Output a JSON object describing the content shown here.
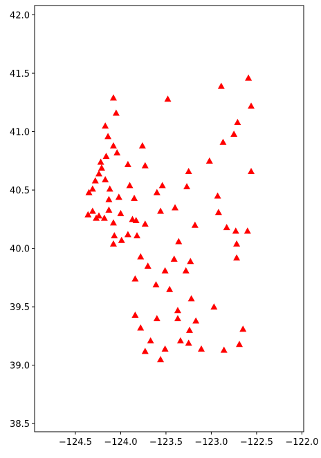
{
  "chart_data": {
    "type": "scatter",
    "marker": "triangle",
    "color": "#ff0000",
    "x": [
      -122.59,
      -122.89,
      -124.08,
      -123.48,
      -122.56,
      -124.05,
      -122.71,
      -124.17,
      -122.75,
      -124.14,
      -122.87,
      -123.76,
      -124.08,
      -124.04,
      -124.16,
      -124.22,
      -123.02,
      -123.92,
      -123.73,
      -124.21,
      -124.24,
      -123.25,
      -122.56,
      -124.17,
      -124.28,
      -123.9,
      -123.54,
      -124.12,
      -123.27,
      -124.31,
      -124.35,
      -123.6,
      -122.93,
      -124.02,
      -123.85,
      -124.13,
      -123.4,
      -124.13,
      -124.31,
      -123.56,
      -122.92,
      -124.0,
      -124.36,
      -124.24,
      -124.27,
      -124.18,
      -123.87,
      -123.83,
      -124.08,
      -123.73,
      -123.18,
      -122.83,
      -122.73,
      -122.6,
      -124.07,
      -123.92,
      -123.82,
      -123.36,
      -123.99,
      -124.08,
      -122.72,
      -123.78,
      -122.72,
      -123.41,
      -123.23,
      -123.7,
      -123.51,
      -123.28,
      -123.84,
      -123.61,
      -123.46,
      -123.22,
      -123.37,
      -122.97,
      -123.84,
      -123.6,
      -123.37,
      -123.17,
      -123.78,
      -123.24,
      -122.65,
      -123.67,
      -123.34,
      -123.25,
      -122.69,
      -123.51,
      -123.11,
      -123.73,
      -122.86,
      -123.56
    ],
    "values": [
      41.46,
      41.39,
      41.29,
      41.28,
      41.22,
      41.16,
      41.08,
      41.05,
      40.98,
      40.96,
      40.91,
      40.88,
      40.88,
      40.82,
      40.79,
      40.74,
      40.75,
      40.72,
      40.71,
      40.69,
      40.64,
      40.66,
      40.66,
      40.59,
      40.58,
      40.54,
      40.54,
      40.51,
      40.53,
      40.51,
      40.48,
      40.48,
      40.45,
      40.44,
      40.43,
      40.42,
      40.35,
      40.33,
      40.32,
      40.32,
      40.31,
      40.3,
      40.29,
      40.28,
      40.26,
      40.26,
      40.25,
      40.24,
      40.22,
      40.21,
      40.2,
      40.18,
      40.15,
      40.15,
      40.11,
      40.12,
      40.11,
      40.06,
      40.07,
      40.04,
      40.04,
      39.93,
      39.92,
      39.91,
      39.89,
      39.85,
      39.81,
      39.81,
      39.74,
      39.69,
      39.65,
      39.57,
      39.47,
      39.5,
      39.43,
      39.4,
      39.4,
      39.38,
      39.32,
      39.3,
      39.31,
      39.21,
      39.21,
      39.19,
      39.18,
      39.14,
      39.14,
      39.12,
      39.13,
      39.05
    ],
    "xlim": [
      -124.95,
      -121.98
    ],
    "ylim": [
      38.43,
      42.08
    ],
    "xticks": [
      {
        "value": -124.5,
        "label": "−124.5"
      },
      {
        "value": -124,
        "label": "−124.0"
      },
      {
        "value": -123.5,
        "label": "−123.5"
      },
      {
        "value": -123,
        "label": "−123.0"
      },
      {
        "value": -122.5,
        "label": "−122.5"
      },
      {
        "value": -122,
        "label": "−122.0"
      }
    ],
    "yticks": [
      38.5,
      {
        "value": 39,
        "label": "39.0"
      },
      39.5,
      {
        "value": 40,
        "label": "40.0"
      },
      40.5,
      {
        "value": 41,
        "label": "41.0"
      },
      41.5,
      {
        "value": 42,
        "label": "42.0"
      }
    ]
  }
}
